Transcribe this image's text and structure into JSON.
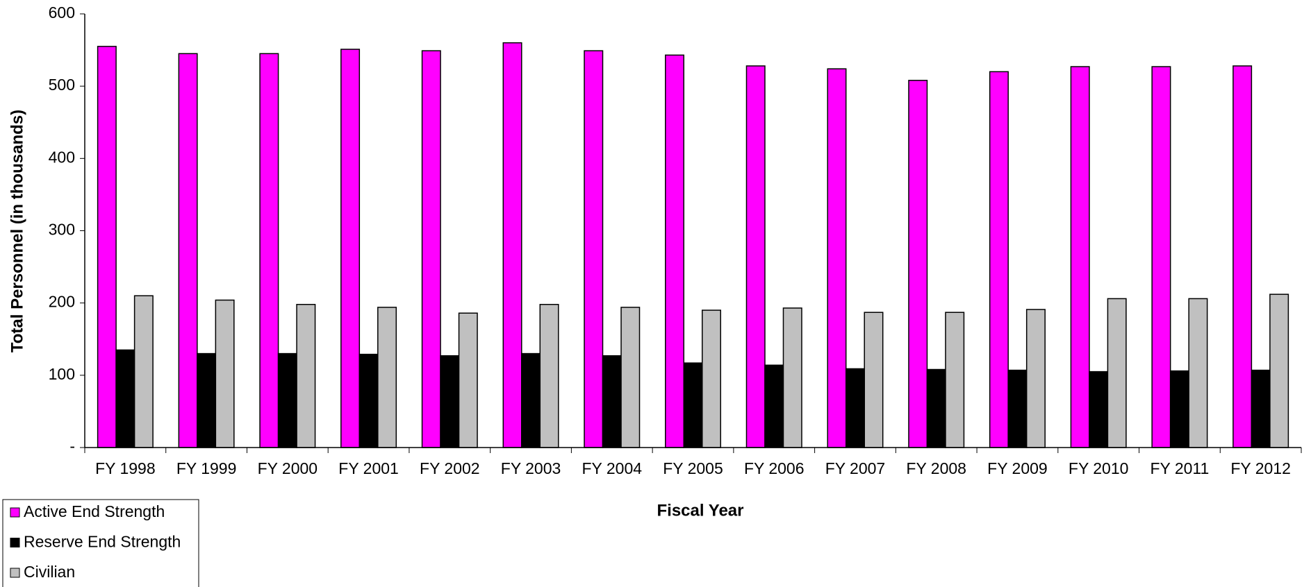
{
  "chart_data": {
    "type": "bar",
    "categories": [
      "FY 1998",
      "FY 1999",
      "FY 2000",
      "FY 2001",
      "FY 2002",
      "FY 2003",
      "FY 2004",
      "FY 2005",
      "FY 2006",
      "FY 2007",
      "FY 2008",
      "FY 2009",
      "FY 2010",
      "FY 2011",
      "FY 2012"
    ],
    "series": [
      {
        "name": "Active End Strength",
        "color": "#ff00ff",
        "values": [
          555,
          545,
          545,
          551,
          549,
          560,
          549,
          543,
          528,
          524,
          508,
          520,
          527,
          527,
          528
        ]
      },
      {
        "name": "Reserve End Strength",
        "color": "#000000",
        "values": [
          135,
          130,
          130,
          129,
          127,
          130,
          127,
          117,
          114,
          109,
          108,
          107,
          105,
          106,
          107
        ]
      },
      {
        "name": "Civilian",
        "color": "#c0c0c0",
        "values": [
          210,
          204,
          198,
          194,
          186,
          198,
          194,
          190,
          193,
          187,
          187,
          191,
          206,
          206,
          212
        ]
      }
    ],
    "x_label": "Fiscal Year",
    "y_label": "Total Personnel (in thousands)",
    "ylim": [
      0,
      600
    ],
    "yticks": [
      {
        "value": 0,
        "label": "-"
      },
      100,
      200,
      300,
      400,
      500,
      600
    ],
    "grid": false,
    "legend": "bottom-left"
  }
}
